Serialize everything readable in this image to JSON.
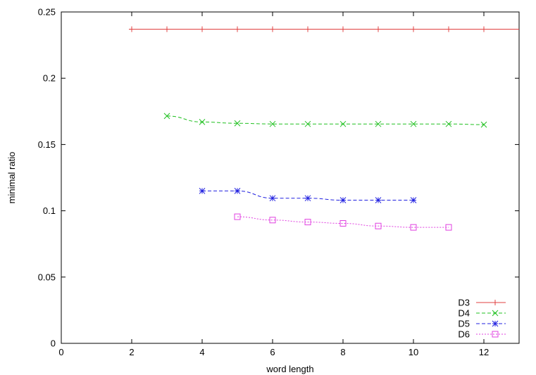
{
  "chart_data": {
    "type": "line",
    "title": "",
    "xlabel": "word length",
    "ylabel": "minimal ratio",
    "xlim": [
      0,
      13
    ],
    "ylim": [
      0,
      0.25
    ],
    "xticks": [
      0,
      2,
      4,
      6,
      8,
      10,
      12
    ],
    "yticks": [
      0,
      0.05,
      0.1,
      0.15,
      0.2,
      0.25
    ],
    "xtick_labels": [
      "0",
      "2",
      "4",
      "6",
      "8",
      "10",
      "12"
    ],
    "ytick_labels": [
      "0",
      "0.05",
      "0.1",
      "0.15",
      "0.2",
      "0.25"
    ],
    "grid": false,
    "legend_position": "bottom-right",
    "series": [
      {
        "name": "D3",
        "color": "#e04040",
        "marker": "plus",
        "line_style": "solid",
        "extends_to_axis_end": true,
        "x": [
          2,
          3,
          4,
          5,
          6,
          7,
          8,
          9,
          10,
          11,
          12
        ],
        "y": [
          0.237,
          0.237,
          0.237,
          0.237,
          0.237,
          0.237,
          0.237,
          0.237,
          0.237,
          0.237,
          0.237
        ]
      },
      {
        "name": "D4",
        "color": "#20c020",
        "marker": "cross",
        "line_style": "dashed",
        "extends_to_axis_end": false,
        "x": [
          3,
          4,
          5,
          6,
          7,
          8,
          9,
          10,
          11,
          12
        ],
        "y": [
          0.1715,
          0.167,
          0.166,
          0.1655,
          0.1655,
          0.1655,
          0.1655,
          0.1655,
          0.1655,
          0.165
        ]
      },
      {
        "name": "D5",
        "color": "#2020e0",
        "marker": "star",
        "line_style": "dashed",
        "extends_to_axis_end": false,
        "x": [
          4,
          5,
          6,
          7,
          8,
          9,
          10
        ],
        "y": [
          0.115,
          0.115,
          0.1095,
          0.1095,
          0.108,
          0.108,
          0.108
        ]
      },
      {
        "name": "D6",
        "color": "#e040e0",
        "marker": "square",
        "line_style": "dotted",
        "extends_to_axis_end": false,
        "x": [
          5,
          6,
          7,
          8,
          9,
          10,
          11
        ],
        "y": [
          0.0955,
          0.093,
          0.0915,
          0.0905,
          0.0885,
          0.0875,
          0.0875
        ]
      }
    ]
  }
}
